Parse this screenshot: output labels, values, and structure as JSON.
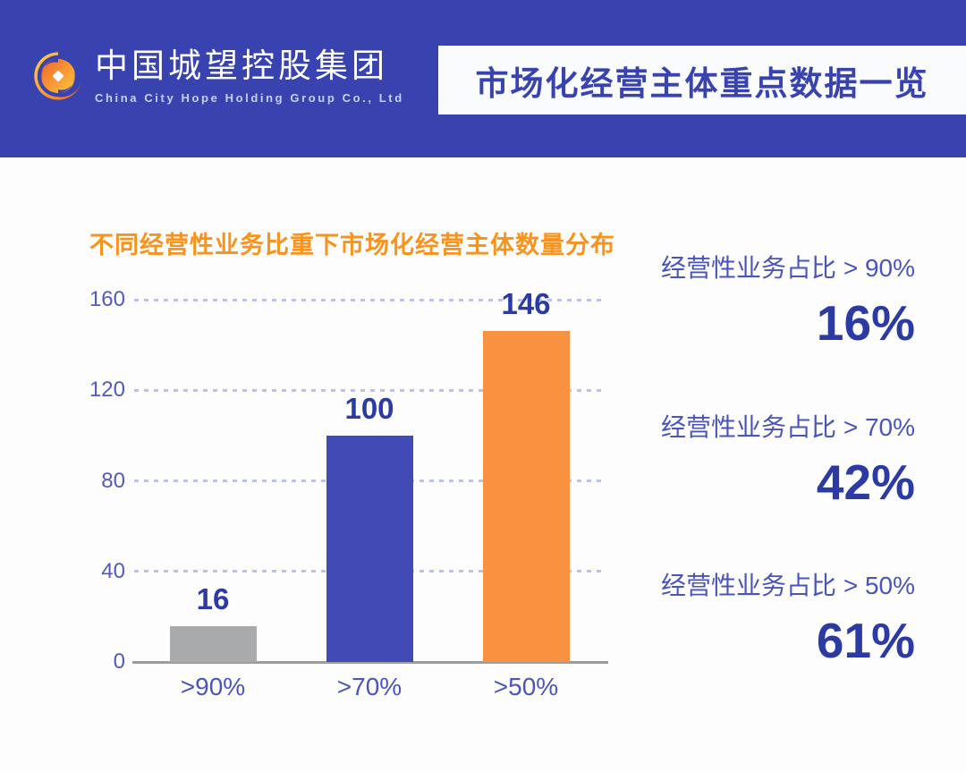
{
  "brand": {
    "name_zh": "中国城望控股集团",
    "name_en": "China City Hope Holding Group Co., Ltd",
    "logo_icon": "swirl-ring-logo"
  },
  "header": {
    "title": "市场化经营主体重点数据一览"
  },
  "chart_data": {
    "type": "bar",
    "title": "不同经营性业务比重下市场化经营主体数量分布",
    "categories": [
      ">90%",
      ">70%",
      ">50%"
    ],
    "values": [
      16,
      100,
      146
    ],
    "value_labels": [
      "16",
      "100",
      "146"
    ],
    "bar_colors": [
      "#a8aaac",
      "#424bb5",
      "#f89140"
    ],
    "ylim": [
      0,
      160
    ],
    "yticks": [
      0,
      40,
      80,
      120,
      160
    ],
    "grid": "dashed-horizontal",
    "legend": "none",
    "xlabel": "",
    "ylabel": ""
  },
  "stats": [
    {
      "label": "经营性业务占比 > 90%",
      "value": "16%"
    },
    {
      "label": "经营性业务占比 > 70%",
      "value": "42%"
    },
    {
      "label": "经营性业务占比 > 50%",
      "value": "61%"
    }
  ],
  "colors": {
    "header_bg": "#3843b0",
    "header_title_text": "#3843b0",
    "chart_title": "#f8931d",
    "stat_label": "#4a55b8",
    "stat_value": "#2c3ba4",
    "gridline": "#bdc3e7",
    "axis_line": "#9d9d9d"
  }
}
